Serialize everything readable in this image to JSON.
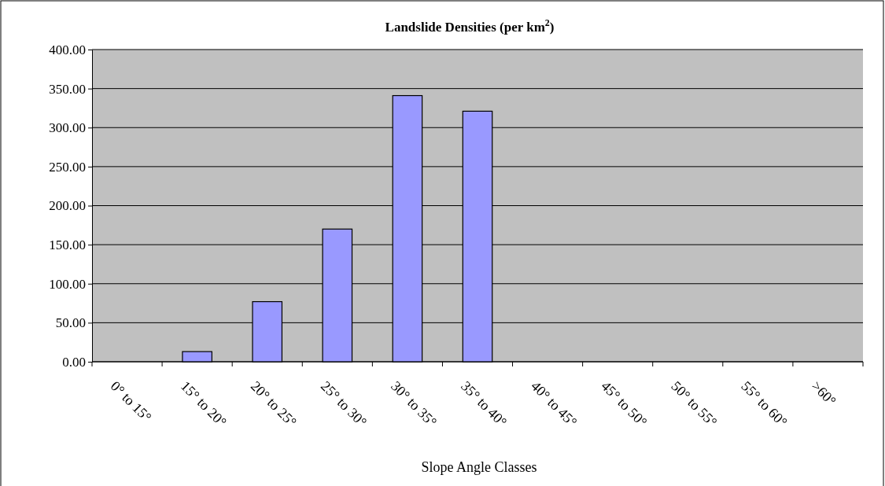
{
  "chart_data": {
    "type": "bar",
    "title": "Landslide Densities (per km$^{2}$)",
    "xlabel": "Slope Angle Classes",
    "categories": [
      "0° to 15°",
      "15° to 20°",
      "20° to 25°",
      "25° to 30°",
      "30° to 35°",
      "35° to 40°",
      "40° to 45°",
      "45° to 50°",
      "50° to 55°",
      "55° to 60°",
      ">60°"
    ],
    "values": [
      0,
      13,
      77,
      170,
      341,
      321,
      0,
      0,
      0,
      0,
      0
    ],
    "color": "#9999ff",
    "ylim": [
      0,
      400
    ],
    "yticks": [
      {
        "value": 0,
        "label": "0.00"
      },
      {
        "value": 50,
        "label": "50.00"
      },
      {
        "value": 100,
        "label": "100.00"
      },
      {
        "value": 150,
        "label": "150.00"
      },
      {
        "value": 200,
        "label": "200.00"
      },
      {
        "value": 250,
        "label": "250.00"
      },
      {
        "value": 300,
        "label": "300.00"
      },
      {
        "value": 350,
        "label": "350.00"
      },
      {
        "value": 400,
        "label": "400.00"
      }
    ],
    "grid": "y"
  }
}
